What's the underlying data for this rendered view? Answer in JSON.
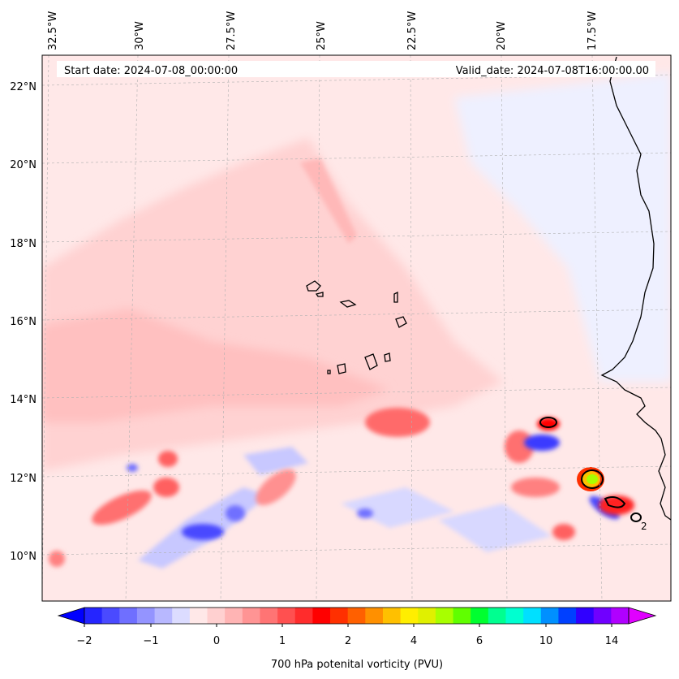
{
  "map": {
    "start_label": "Start date: 2024-07-08_00:00:00",
    "valid_label": "Valid_date: 2024-07-08T16:00:00.00",
    "lon_labels": [
      "32.5°W",
      "30°W",
      "27.5°W",
      "25°W",
      "22.5°W",
      "20°W",
      "17.5°W"
    ],
    "lat_labels": [
      "22°N",
      "20°N",
      "18°N",
      "16°N",
      "14°N",
      "12°N",
      "10°N"
    ],
    "contour_label": "2"
  },
  "colorbar": {
    "title": "700 hPa potenital vorticity (PVU)",
    "tick_labels": [
      "−2",
      "−1",
      "0",
      "1",
      "2",
      "4",
      "6",
      "10",
      "14"
    ],
    "colors": [
      "#0000ff",
      "#2525ff",
      "#4a4aff",
      "#6f6fff",
      "#9494ff",
      "#b8b8ff",
      "#dcdcff",
      "#ffe8e8",
      "#ffd0d0",
      "#ffb4b4",
      "#ff9494",
      "#ff7474",
      "#ff5050",
      "#ff2c2c",
      "#ff0000",
      "#ff3000",
      "#ff6000",
      "#ff9000",
      "#ffc000",
      "#ffee00",
      "#e0f000",
      "#a8ff00",
      "#60ff00",
      "#00ff30",
      "#00ff90",
      "#00ffd0",
      "#00e0ff",
      "#0090ff",
      "#0040ff",
      "#3000ff",
      "#7000ff",
      "#b000ff",
      "#e000ff"
    ]
  }
}
